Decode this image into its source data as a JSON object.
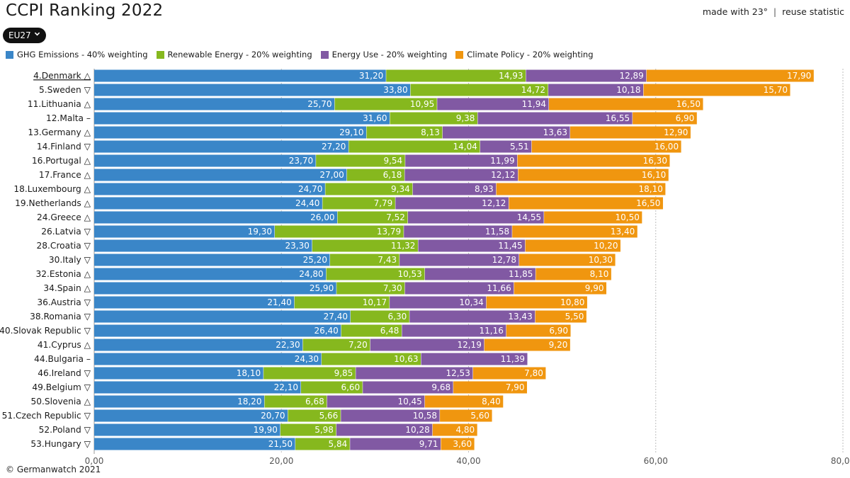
{
  "header": {
    "title": "CCPI Ranking 2022",
    "made_with": "made with 23°",
    "separator": "|",
    "reuse": "reuse statistic"
  },
  "selector": {
    "label": "EU27"
  },
  "footer": {
    "credit": "© Germanwatch 2021"
  },
  "chart_data": {
    "type": "bar",
    "orientation": "horizontal",
    "stacked": true,
    "xlim": [
      0,
      80
    ],
    "x_ticks": [
      "0,00",
      "20,00",
      "40,00",
      "60,00",
      "80,00"
    ],
    "grid": true,
    "legend_position": "top-left",
    "categories": [
      "4.Denmark △",
      "5.Sweden ▽",
      "11.Lithuania △",
      "12.Malta –",
      "13.Germany △",
      "14.Finland ▽",
      "16.Portugal △",
      "17.France △",
      "18.Luxembourg △",
      "19.Netherlands △",
      "24.Greece △",
      "26.Latvia ▽",
      "28.Croatia ▽",
      "30.Italy ▽",
      "32.Estonia △",
      "34.Spain △",
      "36.Austria ▽",
      "38.Romania ▽",
      "40.Slovak Republic ▽",
      "41.Cyprus △",
      "44.Bulgaria –",
      "46.Ireland ▽",
      "49.Belgium ▽",
      "50.Slovenia △",
      "51.Czech Republic ▽",
      "52.Poland ▽",
      "53.Hungary ▽"
    ],
    "series": [
      {
        "name": "GHG Emissions - 40% weighting",
        "color": "#3a86c8",
        "values": [
          31.2,
          33.8,
          25.7,
          31.6,
          29.1,
          27.2,
          23.7,
          27.0,
          24.7,
          24.4,
          26.0,
          19.3,
          23.3,
          25.2,
          24.8,
          25.9,
          21.4,
          27.4,
          26.4,
          22.3,
          24.3,
          18.1,
          22.1,
          18.2,
          20.7,
          19.9,
          21.5
        ],
        "labels": [
          "31,20",
          "33,80",
          "25,70",
          "31,60",
          "29,10",
          "27,20",
          "23,70",
          "27,00",
          "24,70",
          "24,40",
          "26,00",
          "19,30",
          "23,30",
          "25,20",
          "24,80",
          "25,90",
          "21,40",
          "27,40",
          "26,40",
          "22,30",
          "24,30",
          "18,10",
          "22,10",
          "18,20",
          "20,70",
          "19,90",
          "21,50"
        ]
      },
      {
        "name": "Renewable Energy - 20% weighting",
        "color": "#86b81e",
        "values": [
          14.93,
          14.72,
          10.95,
          9.38,
          8.13,
          14.04,
          9.54,
          6.18,
          9.34,
          7.79,
          7.52,
          13.79,
          11.32,
          7.43,
          10.53,
          7.3,
          10.17,
          6.3,
          6.48,
          7.2,
          10.63,
          9.85,
          6.6,
          6.68,
          5.66,
          5.98,
          5.84
        ],
        "labels": [
          "14,93",
          "14,72",
          "10,95",
          "9,38",
          "8,13",
          "14,04",
          "9,54",
          "6,18",
          "9,34",
          "7,79",
          "7,52",
          "13,79",
          "11,32",
          "7,43",
          "10,53",
          "7,30",
          "10,17",
          "6,30",
          "6,48",
          "7,20",
          "10,63",
          "9,85",
          "6,60",
          "6,68",
          "5,66",
          "5,98",
          "5,84"
        ]
      },
      {
        "name": "Energy Use - 20% weighting",
        "color": "#8159a3",
        "values": [
          12.89,
          10.18,
          11.94,
          16.55,
          13.63,
          5.51,
          11.99,
          12.12,
          8.93,
          12.12,
          14.55,
          11.58,
          11.45,
          12.78,
          11.85,
          11.66,
          10.34,
          13.43,
          11.16,
          12.19,
          11.39,
          12.53,
          9.68,
          10.45,
          10.58,
          10.28,
          9.71
        ],
        "labels": [
          "12,89",
          "10,18",
          "11,94",
          "16,55",
          "13,63",
          "5,51",
          "11,99",
          "12,12",
          "8,93",
          "12,12",
          "14,55",
          "11,58",
          "11,45",
          "12,78",
          "11,85",
          "11,66",
          "10,34",
          "13,43",
          "11,16",
          "12,19",
          "11,39",
          "12,53",
          "9,68",
          "10,45",
          "10,58",
          "10,28",
          "9,71"
        ]
      },
      {
        "name": "Climate Policy - 20% weighting",
        "color": "#f0960f",
        "values": [
          17.9,
          15.7,
          16.5,
          6.9,
          12.9,
          16.0,
          16.3,
          16.1,
          18.1,
          16.5,
          10.5,
          13.4,
          10.2,
          10.3,
          8.1,
          9.9,
          10.8,
          5.5,
          6.9,
          9.2,
          null,
          7.8,
          7.9,
          8.4,
          5.6,
          4.8,
          3.6
        ],
        "labels": [
          "17,90",
          "15,70",
          "16,50",
          "6,90",
          "12,90",
          "16,00",
          "16,30",
          "16,10",
          "18,10",
          "16,50",
          "10,50",
          "13,40",
          "10,20",
          "10,30",
          "8,10",
          "9,90",
          "10,80",
          "5,50",
          "6,90",
          "9,20",
          "",
          "7,80",
          "7,90",
          "8,40",
          "5,60",
          "4,80",
          "3,60"
        ]
      }
    ]
  }
}
